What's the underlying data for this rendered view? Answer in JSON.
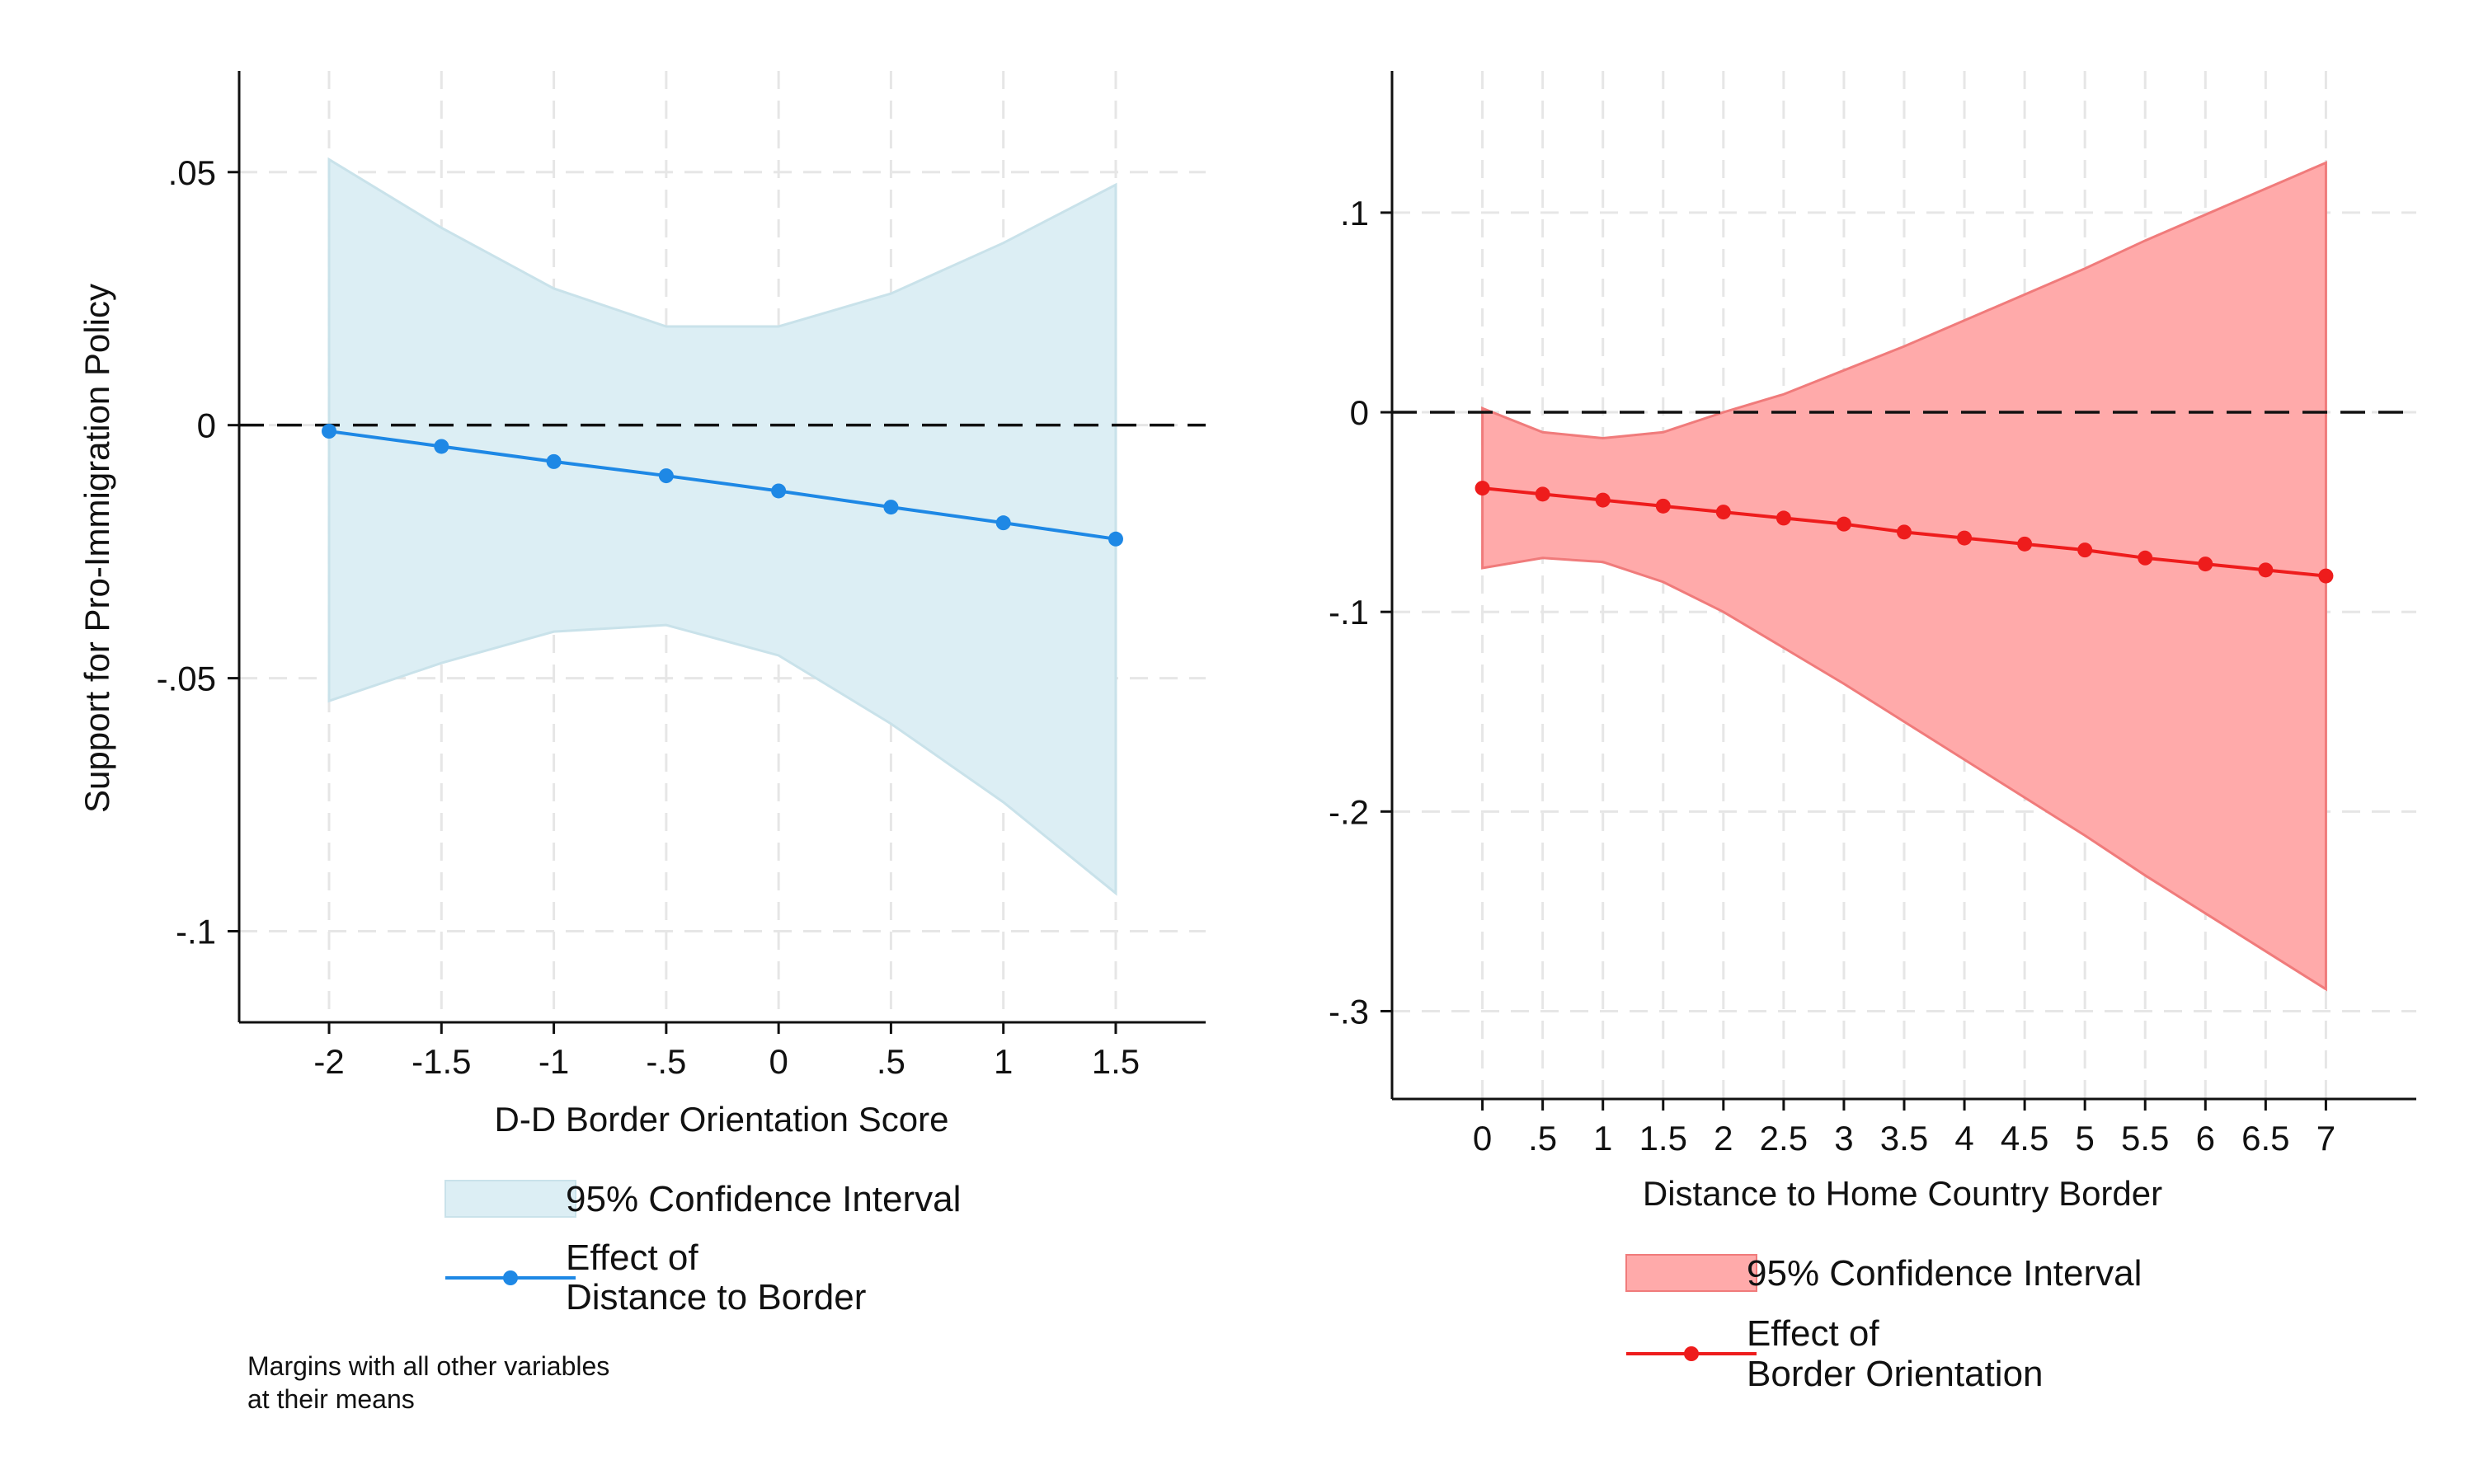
{
  "chart_data": [
    {
      "type": "line",
      "ylabel": "Support for Pro-Immigration Policy",
      "xlabel": "D-D Border Orientation Score",
      "x": [
        -2,
        -1.5,
        -1,
        -0.5,
        0,
        0.5,
        1,
        1.5
      ],
      "x_tick_labels": [
        "-2",
        "-1.5",
        "-1",
        "-.5",
        "0",
        ".5",
        "1",
        "1.5"
      ],
      "y_ticks": [
        0.05,
        0,
        -0.05,
        -0.1
      ],
      "y_tick_labels": [
        ".05",
        "0",
        "-.05",
        "-.1"
      ],
      "xlim": [
        -2.4,
        1.9
      ],
      "ylim": [
        -0.118,
        0.07
      ],
      "reference_line_y": 0,
      "grid": true,
      "series": [
        {
          "name": "Effect of\nDistance to Border",
          "color": "#1e88e5",
          "values": [
            -0.0012,
            -0.0042,
            -0.0072,
            -0.01,
            -0.013,
            -0.0162,
            -0.0193,
            -0.0225
          ]
        },
        {
          "name": "95% Confidence Interval",
          "color": "#dceef4",
          "lower": [
            -0.0545,
            -0.047,
            -0.0408,
            -0.0395,
            -0.0455,
            -0.059,
            -0.0745,
            -0.0925
          ],
          "upper": [
            0.0525,
            0.039,
            0.027,
            0.0195,
            0.0195,
            0.026,
            0.036,
            0.0475
          ]
        }
      ],
      "legend": {
        "ci_label": "95% Confidence Interval",
        "line_label_1": "Effect of",
        "line_label_2": "Distance to Border"
      },
      "note_1": "Margins with all other variables",
      "note_2": "at their means"
    },
    {
      "type": "line",
      "ylabel": "",
      "xlabel": "Distance to Home Country Border",
      "x": [
        0,
        0.5,
        1,
        1.5,
        2,
        2.5,
        3,
        3.5,
        4,
        4.5,
        5,
        5.5,
        6,
        6.5,
        7
      ],
      "x_tick_labels": [
        "0",
        ".5",
        "1",
        "1.5",
        "2",
        "2.5",
        "3",
        "3.5",
        "4",
        "4.5",
        "5",
        "5.5",
        "6",
        "6.5",
        "7"
      ],
      "y_ticks": [
        0.1,
        0,
        -0.1,
        -0.2,
        -0.3
      ],
      "y_tick_labels": [
        ".1",
        "0",
        "-.1",
        "-.2",
        "-.3"
      ],
      "xlim": [
        -0.75,
        7.75
      ],
      "ylim": [
        -0.344,
        0.171
      ],
      "reference_line_y": 0,
      "grid": true,
      "series": [
        {
          "name": "Effect of\nBorder Orientation",
          "color": "#ee1c1c",
          "values": [
            -0.038,
            -0.041,
            -0.044,
            -0.047,
            -0.05,
            -0.053,
            -0.056,
            -0.06,
            -0.063,
            -0.066,
            -0.069,
            -0.073,
            -0.076,
            -0.079,
            -0.082
          ]
        },
        {
          "name": "95% Confidence Interval",
          "color": "#ffaaaa",
          "lower": [
            -0.078,
            -0.073,
            -0.075,
            -0.085,
            -0.1,
            -0.118,
            -0.136,
            -0.155,
            -0.174,
            -0.193,
            -0.212,
            -0.232,
            -0.251,
            -0.27,
            -0.289
          ],
          "upper": [
            0.002,
            -0.01,
            -0.013,
            -0.01,
            0.0,
            0.009,
            0.021,
            0.033,
            0.046,
            0.059,
            0.072,
            0.086,
            0.099,
            0.112,
            0.125
          ]
        }
      ],
      "legend": {
        "ci_label": "95% Confidence Interval",
        "line_label_1": "Effect of",
        "line_label_2": "Border Orientation"
      }
    }
  ]
}
